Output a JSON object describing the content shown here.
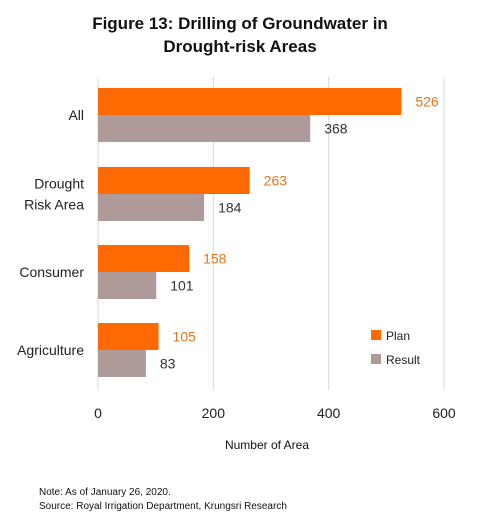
{
  "chart_data": {
    "type": "bar",
    "orientation": "horizontal",
    "title": "Figure 13: Drilling of Groundwater in Drought-risk Areas",
    "categories": [
      "All",
      "Drought Risk Area",
      "Consumer",
      "Agriculture"
    ],
    "category_lines": [
      [
        "All"
      ],
      [
        "Drought",
        "Risk Area"
      ],
      [
        "Consumer"
      ],
      [
        "Agriculture"
      ]
    ],
    "series": [
      {
        "name": "Plan",
        "values": [
          526,
          263,
          158,
          105
        ],
        "color": "#FF6A00",
        "label_color": "#E8731A"
      },
      {
        "name": "Result",
        "values": [
          368,
          184,
          101,
          83
        ],
        "color": "#AE9A98",
        "label_color": "#333333"
      }
    ],
    "xlabel": "Number of  Area",
    "ylabel": "",
    "xlim": [
      0,
      600
    ],
    "xticks": [
      0,
      200,
      400,
      600
    ],
    "grid": true,
    "data_labels": true,
    "legend_position": "right"
  },
  "notes": {
    "line1": "Note: As of January 26, 2020.",
    "line2": "Source: Royal Irrigation Department, Krungsri Research"
  }
}
